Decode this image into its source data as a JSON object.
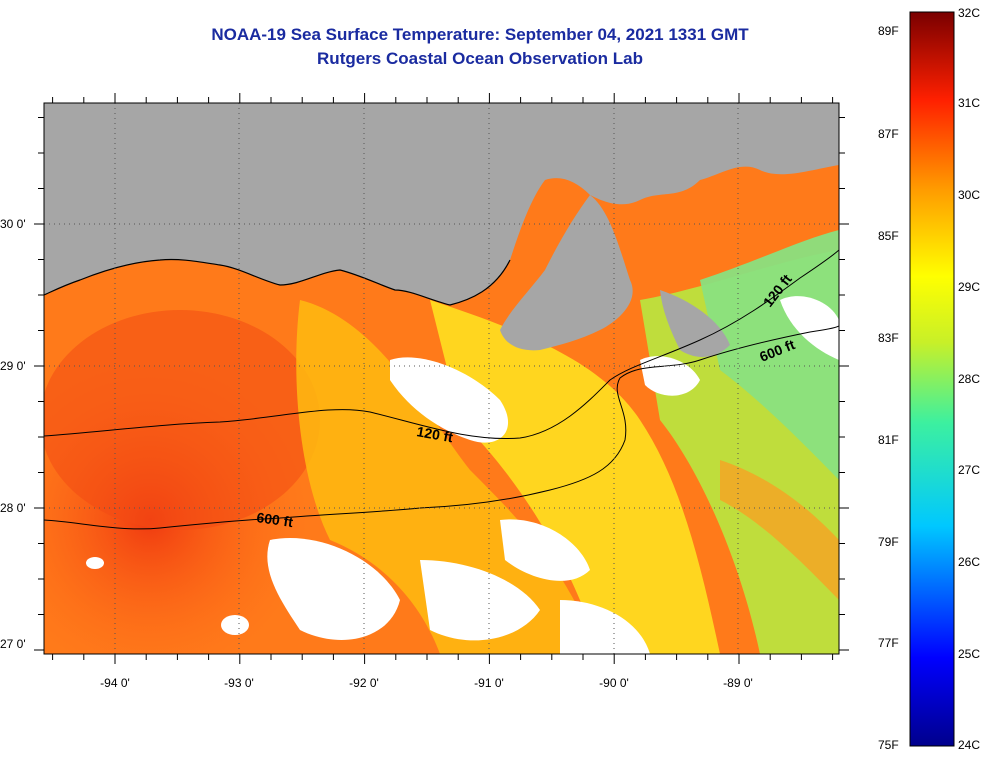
{
  "title_line1": "NOAA-19 Sea Surface Temperature:  September 04, 2021 1331 GMT",
  "title_line2": "Rutgers Coastal Ocean Observation Lab",
  "lat_labels": [
    "30 0'",
    "29 0'",
    "28 0'",
    "27 0'"
  ],
  "lon_labels": [
    "-94 0'",
    "-93 0'",
    "-92 0'",
    "-91 0'",
    "-90 0'",
    "-89 0'"
  ],
  "contour_labels": [
    "120 ft",
    "120 ft",
    "600 ft",
    "600 ft"
  ],
  "colorbar": {
    "fahrenheit": [
      "89F",
      "87F",
      "85F",
      "83F",
      "81F",
      "79F",
      "77F",
      "75F"
    ],
    "celsius": [
      "32C",
      "31C",
      "30C",
      "29C",
      "28C",
      "27C",
      "26C",
      "25C",
      "24C"
    ]
  },
  "colors": {
    "title": "#1a2ba0",
    "land": "#a6a6a6",
    "cloud": "#ffffff",
    "warm": "#ff5a10",
    "mid": "#ffd400",
    "cool": "#7fe07f"
  }
}
